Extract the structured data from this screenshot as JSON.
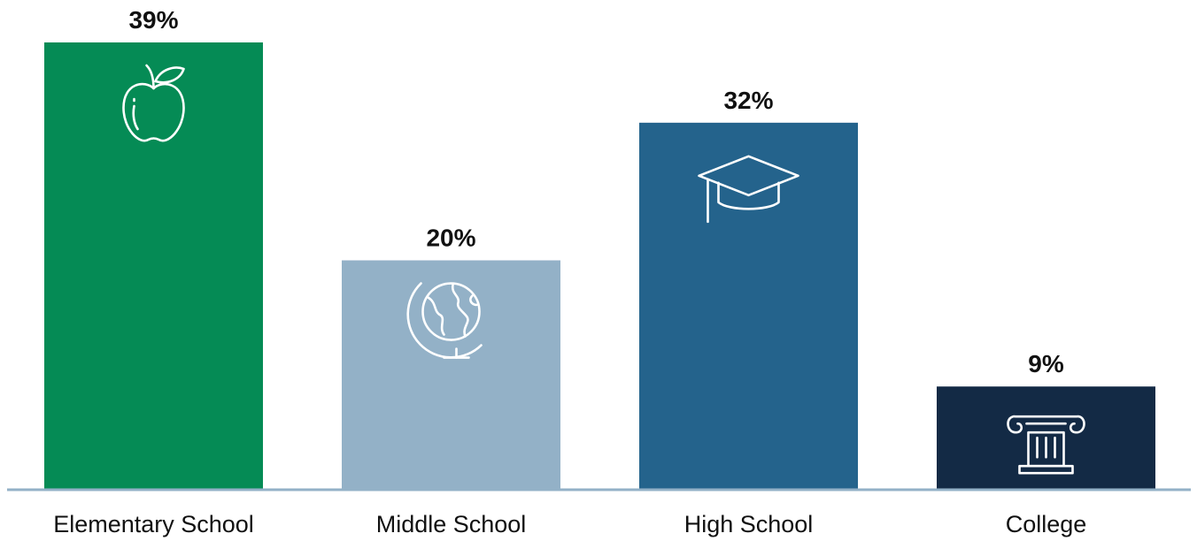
{
  "chart_data": {
    "type": "bar",
    "title": "",
    "xlabel": "",
    "ylabel": "",
    "ylim": [
      0,
      39
    ],
    "grid": false,
    "categories": [
      "Elementary School",
      "Middle School",
      "High School",
      "College"
    ],
    "values": [
      39,
      20,
      32,
      9
    ],
    "value_labels": [
      "39%",
      "20%",
      "32%",
      "9%"
    ],
    "colors": [
      "#058b55",
      "#93b1c7",
      "#24638c",
      "#132a45"
    ],
    "icons": [
      "apple-icon",
      "globe-icon",
      "graduation-cap-icon",
      "column-icon"
    ],
    "axis_color": "#93b1c7"
  }
}
